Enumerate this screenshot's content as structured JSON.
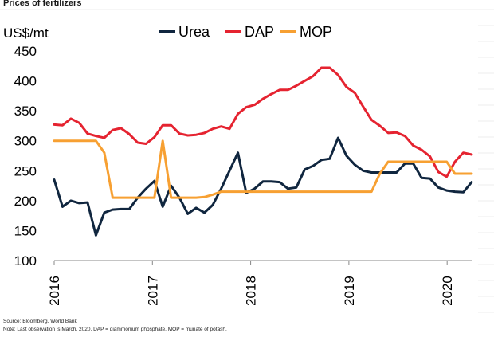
{
  "header": {
    "title": "Prices of fertilizers"
  },
  "footer": {
    "source": "Source: Bloomberg, World Bank",
    "note": "Note: Last observation is March, 2020. DAP = diammonium phosphate. MOP = muriate of potash."
  },
  "chart_data": {
    "type": "line",
    "title": "Prices of fertilizers",
    "ylabel": "US$/mt",
    "xlabel": "",
    "ylim": [
      100,
      450
    ],
    "yticks": [
      100,
      150,
      200,
      250,
      300,
      350,
      400,
      450
    ],
    "xlim": [
      2016,
      2020.25
    ],
    "xticks": [
      {
        "label": "2016",
        "value": 2016
      },
      {
        "label": "2017",
        "value": 2017
      },
      {
        "label": "2018",
        "value": 2018
      },
      {
        "label": "2019",
        "value": 2019
      },
      {
        "label": "2020",
        "value": 2020
      }
    ],
    "legend_position": "top",
    "series": [
      {
        "name": "Urea",
        "color": "#10263f",
        "values": [
          235,
          190,
          200,
          196,
          197,
          142,
          180,
          185,
          186,
          186,
          205,
          220,
          233,
          190,
          225,
          205,
          178,
          188,
          180,
          193,
          220,
          250,
          280,
          213,
          220,
          232,
          232,
          231,
          220,
          222,
          252,
          258,
          268,
          270,
          305,
          275,
          260,
          250,
          247,
          247,
          247,
          247,
          262,
          262,
          238,
          237,
          222,
          217,
          215,
          214,
          231
        ]
      },
      {
        "name": "DAP",
        "color": "#e52330",
        "values": [
          327,
          326,
          337,
          330,
          312,
          308,
          305,
          318,
          321,
          311,
          297,
          295,
          306,
          326,
          326,
          312,
          309,
          310,
          313,
          320,
          324,
          320,
          345,
          356,
          360,
          370,
          378,
          385,
          385,
          392,
          400,
          408,
          422,
          422,
          410,
          390,
          380,
          357,
          335,
          325,
          313,
          314,
          308,
          292,
          285,
          274,
          248,
          240,
          265,
          280,
          277
        ]
      },
      {
        "name": "MOP",
        "color": "#f7a032",
        "values": [
          300,
          300,
          300,
          300,
          300,
          300,
          280,
          205,
          205,
          205,
          205,
          205,
          205,
          300,
          205,
          205,
          205,
          205,
          206,
          210,
          215,
          215,
          215,
          215,
          215,
          215,
          215,
          215,
          215,
          215,
          215,
          215,
          215,
          215,
          215,
          215,
          215,
          215,
          215,
          245,
          265,
          265,
          265,
          265,
          265,
          265,
          265,
          265,
          245,
          245,
          245
        ]
      }
    ]
  }
}
